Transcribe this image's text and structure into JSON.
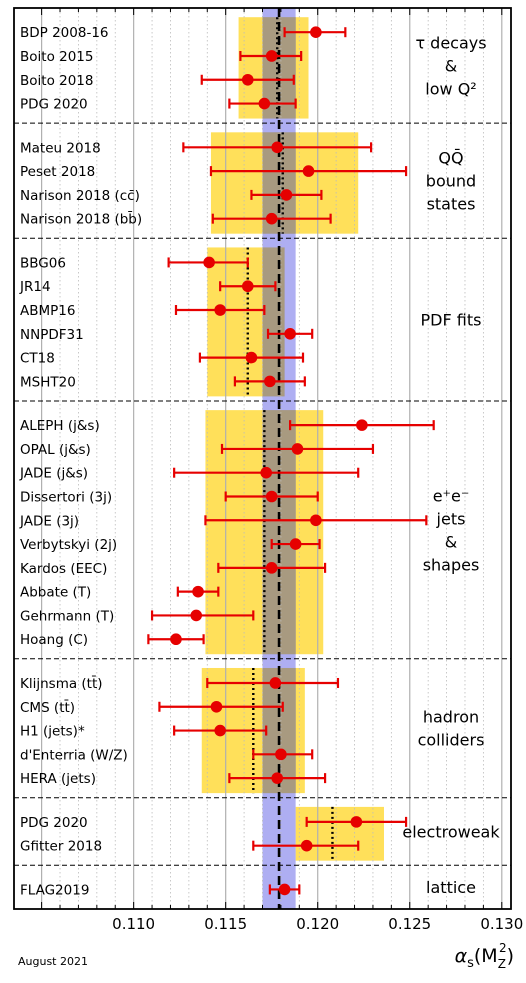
{
  "chart_data": {
    "type": "scatter",
    "subtype": "horizontal error-bar comparison",
    "x_axis": {
      "xlim": [
        0.1035,
        0.1305
      ],
      "ticks": [
        "0.110",
        "0.115",
        "0.120",
        "0.125",
        "0.130"
      ],
      "xlabel_main": "α",
      "xlabel_sub": "s",
      "xlabel_args_open": "(M",
      "xlabel_args_sup": "2",
      "xlabel_args_sub": "Z",
      "xlabel_args_close": ")"
    },
    "footnote": "August 2021",
    "world_average": {
      "center": 0.1179,
      "band": [
        0.117,
        0.1188
      ],
      "band_color": "#a0a0f0"
    },
    "colors": {
      "point": "#e60000",
      "group_box": "#ffe05a",
      "overlap_box": "#a89a80"
    },
    "grid": true,
    "groups": [
      {
        "name_lines": [
          "τ decays",
          "&",
          "low Q²"
        ],
        "box": [
          0.1157,
          0.1195
        ],
        "avg": 0.1178,
        "items": [
          {
            "label": "BDP 2008-16",
            "value": 0.1199,
            "err": [
              0.1182,
              0.1215
            ]
          },
          {
            "label": "Boito 2015",
            "value": 0.1175,
            "err": [
              0.1158,
              0.1191
            ]
          },
          {
            "label": "Boito 2018",
            "value": 0.1162,
            "err": [
              0.1137,
              0.1187
            ]
          },
          {
            "label": "PDG 2020",
            "value": 0.1171,
            "err": [
              0.1152,
              0.1188
            ]
          }
        ]
      },
      {
        "name_lines": [
          "QQ̄",
          "bound",
          "states"
        ],
        "box": [
          0.1142,
          0.1222
        ],
        "avg": 0.1181,
        "items": [
          {
            "label": "Mateu 2018",
            "value": 0.1178,
            "err": [
              0.1127,
              0.1229
            ]
          },
          {
            "label": "Peset 2018",
            "value": 0.1195,
            "err": [
              0.1142,
              0.1248
            ]
          },
          {
            "label": "Narison 2018 (cc̄)",
            "value": 0.1183,
            "err": [
              0.1164,
              0.1202
            ]
          },
          {
            "label": "Narison 2018 (bb̄)",
            "value": 0.1175,
            "err": [
              0.1143,
              0.1207
            ]
          }
        ]
      },
      {
        "name_lines": [
          "PDF fits"
        ],
        "box": [
          0.114,
          0.1182
        ],
        "avg": 0.1162,
        "items": [
          {
            "label": "BBG06",
            "value": 0.1141,
            "err": [
              0.1119,
              0.1162
            ]
          },
          {
            "label": "JR14",
            "value": 0.1162,
            "err": [
              0.1147,
              0.1177
            ]
          },
          {
            "label": "ABMP16",
            "value": 0.1147,
            "err": [
              0.1123,
              0.1171
            ]
          },
          {
            "label": "NNPDF31",
            "value": 0.1185,
            "err": [
              0.1173,
              0.1197
            ]
          },
          {
            "label": "CT18",
            "value": 0.1164,
            "err": [
              0.1136,
              0.1192
            ]
          },
          {
            "label": "MSHT20",
            "value": 0.1174,
            "err": [
              0.1155,
              0.1193
            ]
          }
        ]
      },
      {
        "name_lines": [
          "e⁺e⁻",
          "jets",
          "&",
          "shapes"
        ],
        "box": [
          0.1139,
          0.1203
        ],
        "avg": 0.1171,
        "items": [
          {
            "label": "ALEPH (j&s)",
            "value": 0.1224,
            "err": [
              0.1185,
              0.1263
            ]
          },
          {
            "label": "OPAL (j&s)",
            "value": 0.1189,
            "err": [
              0.1148,
              0.123
            ]
          },
          {
            "label": "JADE (j&s)",
            "value": 0.1172,
            "err": [
              0.1122,
              0.1222
            ]
          },
          {
            "label": "Dissertori (3j)",
            "value": 0.1175,
            "err": [
              0.115,
              0.12
            ]
          },
          {
            "label": "JADE (3j)",
            "value": 0.1199,
            "err": [
              0.1139,
              0.1259
            ]
          },
          {
            "label": "Verbytskyi (2j)",
            "value": 0.1188,
            "err": [
              0.1175,
              0.1201
            ]
          },
          {
            "label": "Kardos (EEC)",
            "value": 0.1175,
            "err": [
              0.1146,
              0.1204
            ]
          },
          {
            "label": "Abbate (T)",
            "value": 0.1135,
            "err": [
              0.1124,
              0.1146
            ]
          },
          {
            "label": "Gehrmann (T)",
            "value": 0.1134,
            "err": [
              0.111,
              0.1165
            ]
          },
          {
            "label": "Hoang (C)",
            "value": 0.1123,
            "err": [
              0.1108,
              0.1138
            ]
          }
        ]
      },
      {
        "name_lines": [
          "hadron",
          "colliders"
        ],
        "box": [
          0.1137,
          0.1193
        ],
        "avg": 0.1165,
        "items": [
          {
            "label": "Klijnsma (tt̄)",
            "value": 0.1177,
            "err": [
              0.114,
              0.1211
            ]
          },
          {
            "label": "CMS (tt̄)",
            "value": 0.1145,
            "err": [
              0.1114,
              0.1181
            ]
          },
          {
            "label": "H1 (jets)*",
            "value": 0.1147,
            "err": [
              0.1122,
              0.1172
            ]
          },
          {
            "label": "d'Enterria (W/Z)",
            "value": 0.118,
            "err": [
              0.1165,
              0.1197
            ]
          },
          {
            "label": "HERA (jets)",
            "value": 0.1178,
            "err": [
              0.1152,
              0.1204
            ]
          }
        ]
      },
      {
        "name_lines": [
          "electroweak"
        ],
        "box": [
          0.1188,
          0.1236
        ],
        "avg": 0.1208,
        "items": [
          {
            "label": "PDG 2020",
            "value": 0.1221,
            "err": [
              0.1194,
              0.1248
            ]
          },
          {
            "label": "Gfitter 2018",
            "value": 0.1194,
            "err": [
              0.1165,
              0.1222
            ]
          }
        ]
      },
      {
        "name_lines": [
          "lattice"
        ],
        "box": null,
        "avg": null,
        "items": [
          {
            "label": "FLAG2019",
            "value": 0.1182,
            "err": [
              0.1174,
              0.119
            ]
          }
        ]
      }
    ]
  }
}
